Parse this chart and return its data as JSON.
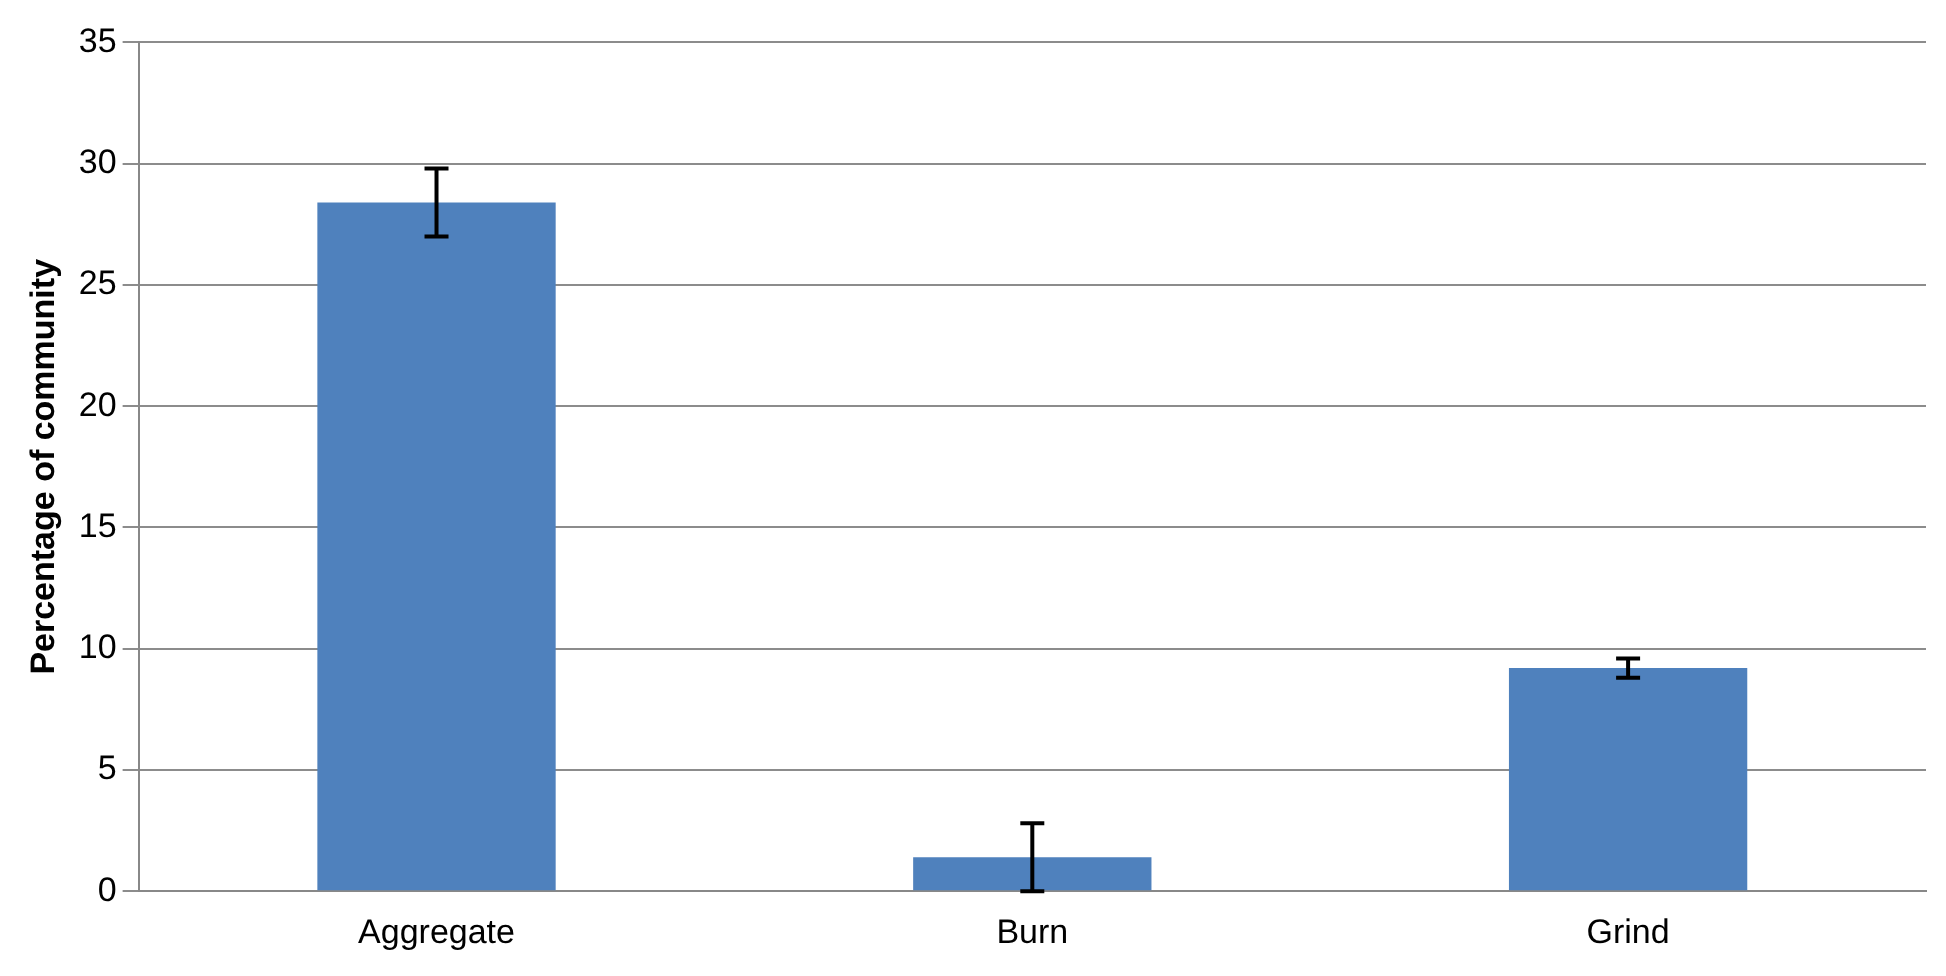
{
  "chart_data": {
    "type": "bar",
    "ylabel": "Percentage of community",
    "categories": [
      "Aggregate",
      "Burn",
      "Grind"
    ],
    "values": [
      28.4,
      1.4,
      9.2
    ],
    "errors": [
      1.4,
      1.4,
      0.4
    ],
    "color": "#4f81bd",
    "ylim": [
      0,
      35
    ],
    "yticks": [
      0,
      5,
      10,
      15,
      20,
      25,
      30,
      35
    ],
    "grid": "y",
    "legend": false
  }
}
